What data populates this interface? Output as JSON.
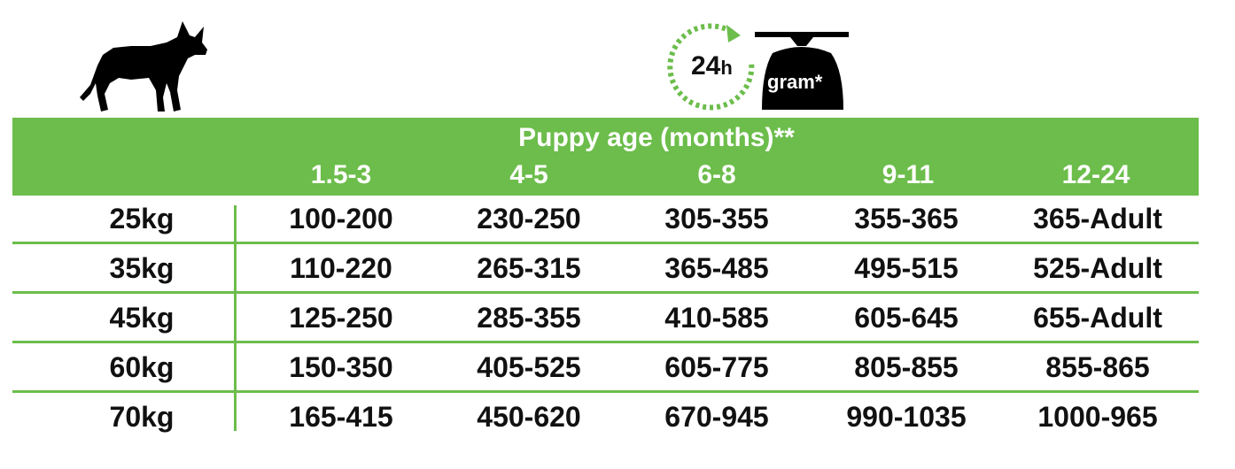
{
  "header": {
    "clock_value": "24",
    "clock_unit": "h",
    "scale_label": "gram*",
    "title": "Puppy age (months)**",
    "ages": [
      "1.5-3",
      "4-5",
      "6-8",
      "9-11",
      "12-24"
    ]
  },
  "icons": {
    "dog": "dog-silhouette-icon",
    "clock": "clock-24h-icon",
    "scale": "weighing-scale-icon"
  },
  "colors": {
    "accent_green": "#6cbd4b",
    "text": "#111111"
  },
  "rows": [
    {
      "weight": "25kg",
      "values": [
        "100-200",
        "230-250",
        "305-355",
        "355-365",
        "365-Adult"
      ]
    },
    {
      "weight": "35kg",
      "values": [
        "110-220",
        "265-315",
        "365-485",
        "495-515",
        "525-Adult"
      ]
    },
    {
      "weight": "45kg",
      "values": [
        "125-250",
        "285-355",
        "410-585",
        "605-645",
        "655-Adult"
      ]
    },
    {
      "weight": "60kg",
      "values": [
        "150-350",
        "405-525",
        "605-775",
        "805-855",
        "855-865"
      ]
    },
    {
      "weight": "70kg",
      "values": [
        "165-415",
        "450-620",
        "670-945",
        "990-1035",
        "1000-965"
      ]
    }
  ]
}
